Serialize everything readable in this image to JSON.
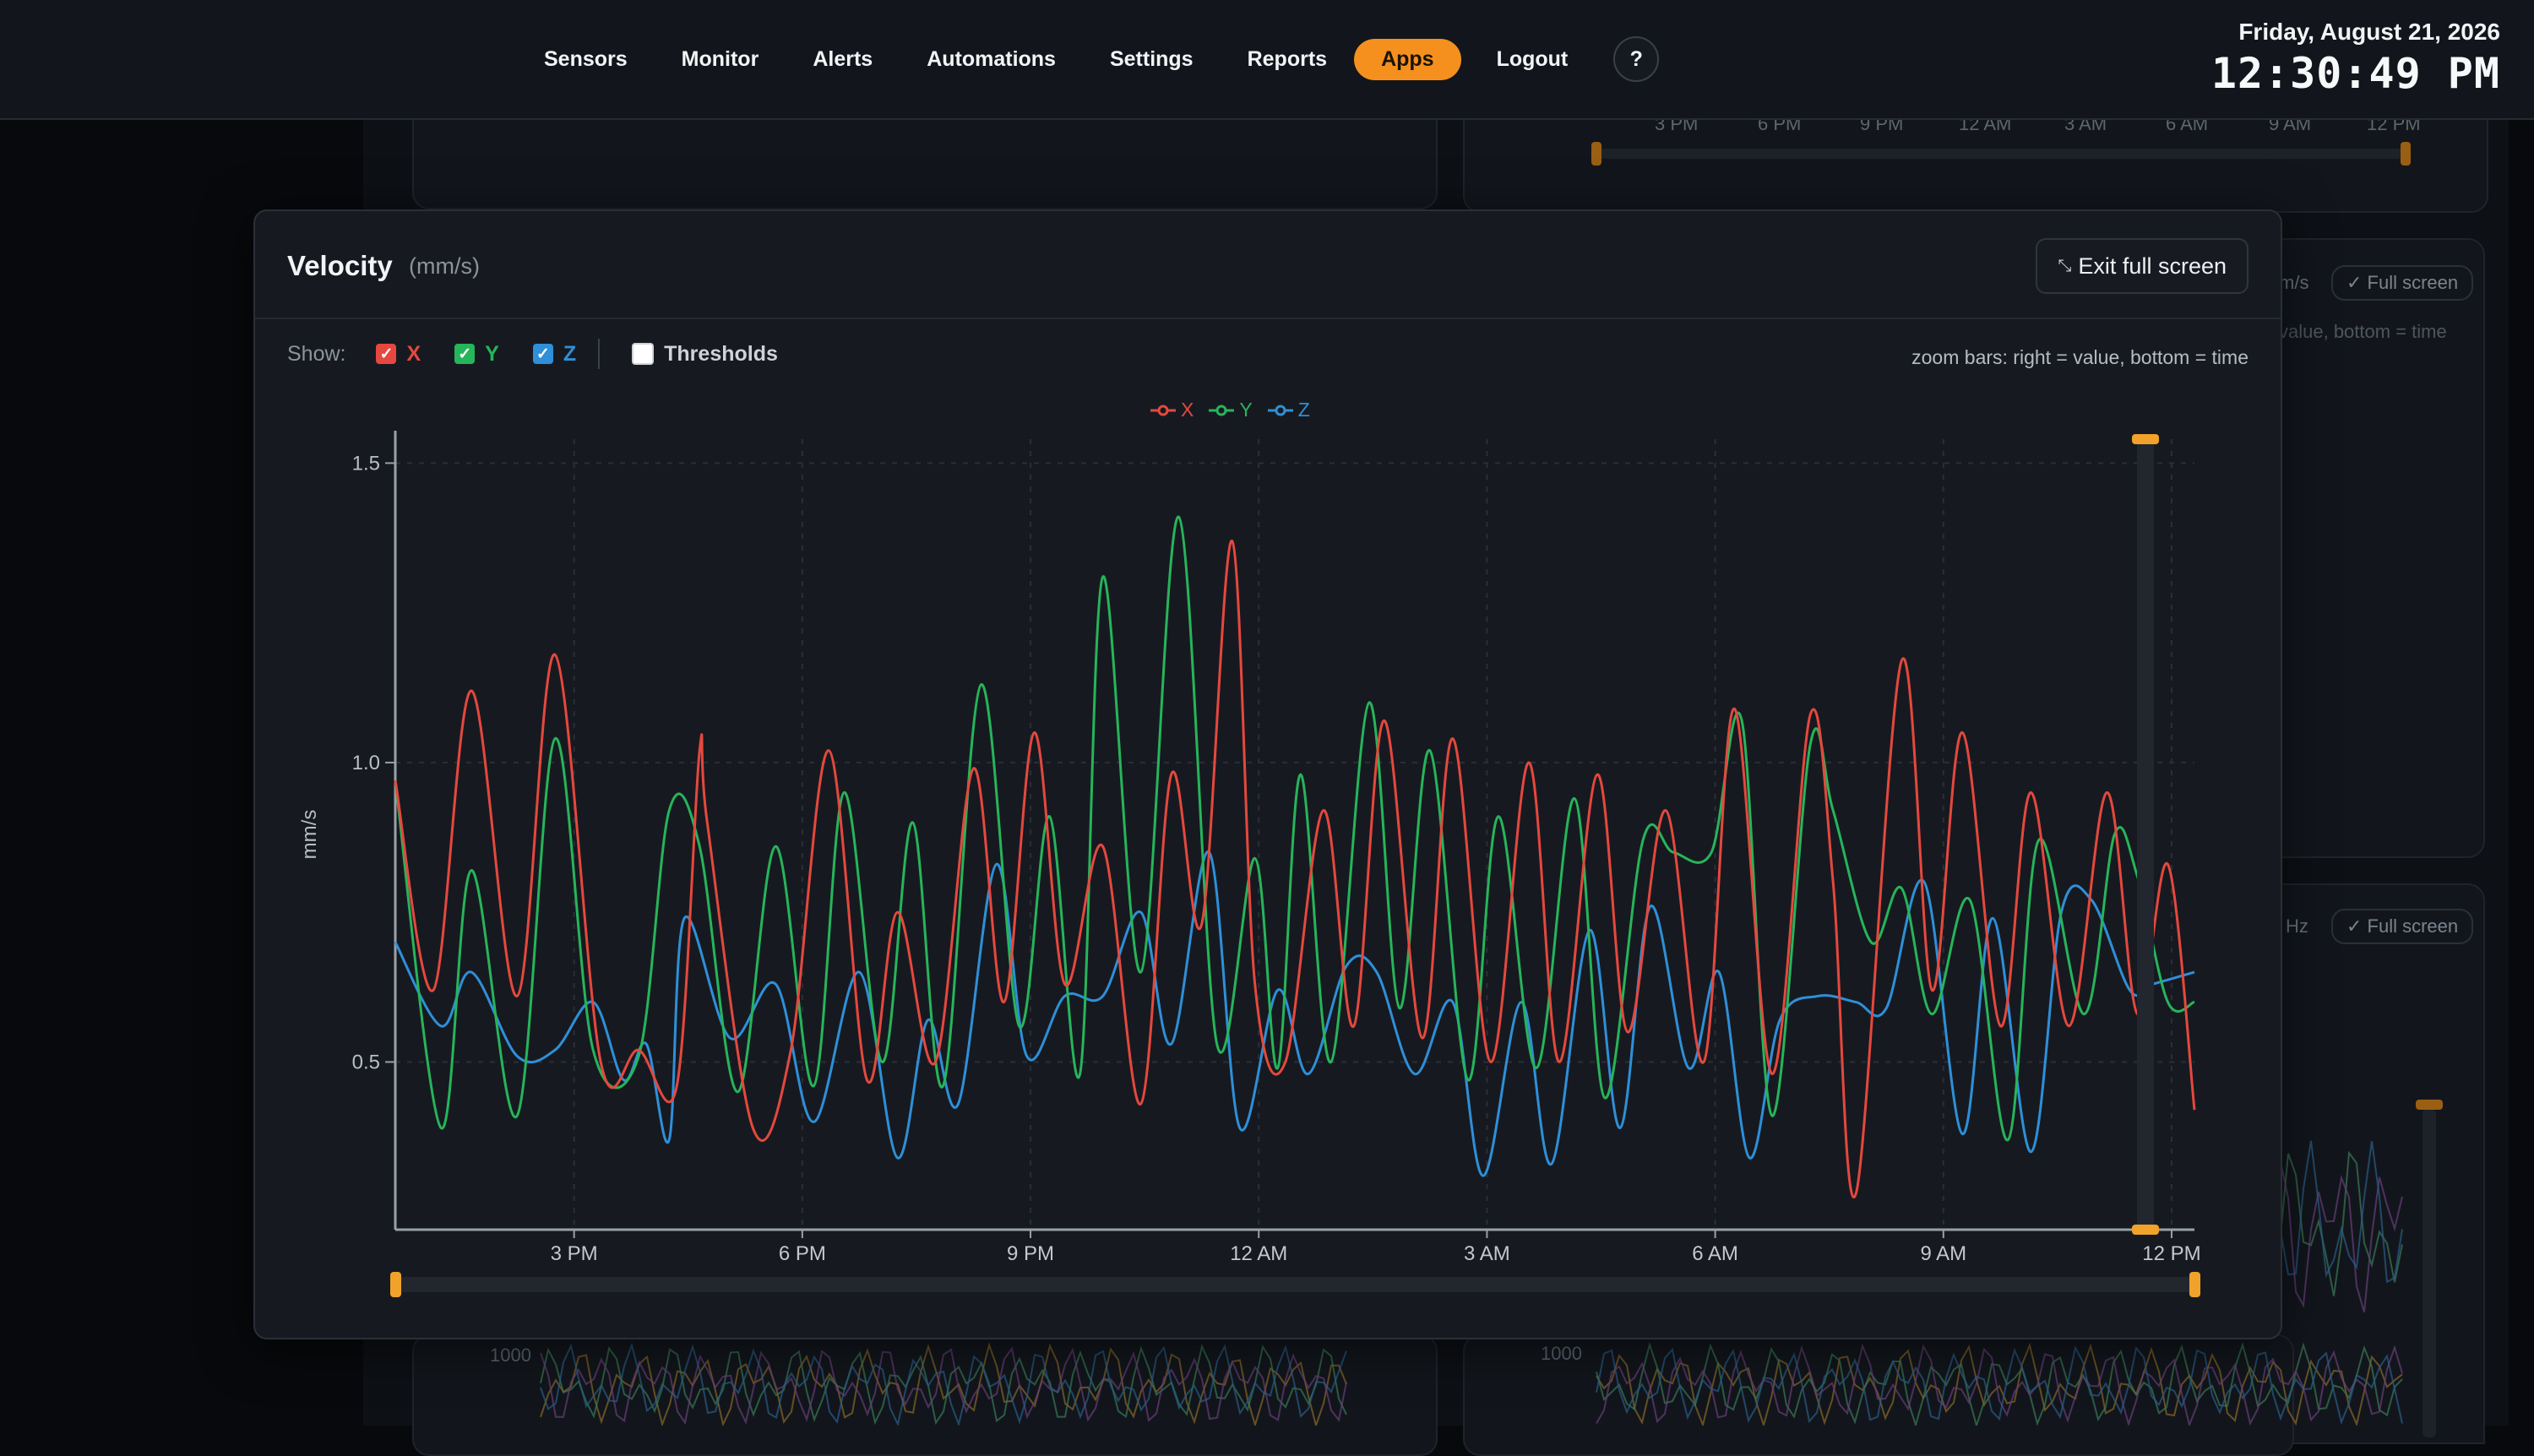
{
  "nav": {
    "items": [
      "Sensors",
      "Monitor",
      "Alerts",
      "Automations",
      "Settings",
      "Reports",
      "Apps",
      "Logout"
    ],
    "active": "Apps",
    "help_label": "?"
  },
  "clock": {
    "date": "Friday, August 21, 2026",
    "time": "12:30:49 PM"
  },
  "background": {
    "top_ticks": [
      "3 PM",
      "6 PM",
      "9 PM",
      "12 AM",
      "3 AM",
      "6 AM",
      "9 AM",
      "12 PM"
    ],
    "card_right_unit": "m/s",
    "card_right_fullscreen": "Full screen",
    "card_right_hint": "value, bottom = time",
    "card_bottom_unit": "Hz",
    "card_bottom_fullscreen": "Full screen",
    "bottom_axis_label_left": "1000",
    "bottom_axis_label_right": "1000"
  },
  "modal": {
    "title": "Velocity",
    "unit": "(mm/s)",
    "exit_label": "Exit full screen",
    "show_label": "Show:",
    "toggles": [
      {
        "label": "X",
        "checked": true,
        "color": "#e5483e"
      },
      {
        "label": "Y",
        "checked": true,
        "color": "#27b45a"
      },
      {
        "label": "Z",
        "checked": true,
        "color": "#2f8fd8"
      },
      {
        "label": "Thresholds",
        "checked": false,
        "color": "#cfd3d8"
      }
    ],
    "zoom_hint": "zoom bars: right = value, bottom = time"
  },
  "chart_data": {
    "type": "line",
    "ylabel": "mm/s",
    "xlabel": "",
    "ylim": [
      0.22,
      1.54
    ],
    "yticks": [
      0.5,
      1.0,
      1.5
    ],
    "xticks": [
      "3 PM",
      "6 PM",
      "9 PM",
      "12 AM",
      "3 AM",
      "6 AM",
      "9 AM",
      "12 PM"
    ],
    "x_tick_positions_hours": [
      2.35,
      5.35,
      8.35,
      11.35,
      14.35,
      17.35,
      20.35,
      23.35
    ],
    "x_range_hours": [
      0,
      23.65
    ],
    "grid": true,
    "legend_position": "top-center",
    "colors": {
      "X": "#e5483e",
      "Y": "#27b45a",
      "Z": "#2f8fd8"
    },
    "series": [
      {
        "name": "X",
        "x": [
          0,
          0.5,
          1.0,
          1.6,
          2.1,
          2.7,
          3.2,
          3.7,
          4.0,
          4.1,
          4.7,
          5.2,
          5.7,
          6.2,
          6.6,
          7.1,
          7.6,
          8.0,
          8.4,
          8.8,
          9.3,
          9.8,
          10.2,
          10.6,
          11.0,
          11.3,
          11.7,
          12.2,
          12.6,
          13.0,
          13.5,
          13.9,
          14.4,
          14.9,
          15.3,
          15.8,
          16.2,
          16.7,
          17.2,
          17.6,
          18.1,
          18.6,
          18.9,
          19.2,
          19.8,
          20.2,
          20.6,
          21.1,
          21.5,
          22.0,
          22.5,
          22.9,
          23.3,
          23.65
        ],
        "y": [
          0.97,
          0.62,
          1.12,
          0.61,
          1.18,
          0.5,
          0.52,
          0.46,
          1.02,
          0.9,
          0.39,
          0.52,
          1.02,
          0.47,
          0.75,
          0.5,
          0.99,
          0.6,
          1.05,
          0.63,
          0.86,
          0.43,
          0.98,
          0.73,
          1.37,
          0.63,
          0.5,
          0.92,
          0.56,
          1.07,
          0.54,
          1.04,
          0.5,
          1.0,
          0.5,
          0.98,
          0.55,
          0.92,
          0.5,
          1.09,
          0.48,
          1.08,
          0.8,
          0.28,
          1.17,
          0.62,
          1.05,
          0.56,
          0.95,
          0.56,
          0.95,
          0.58,
          0.83,
          0.42
        ]
      },
      {
        "name": "Y",
        "x": [
          0,
          0.6,
          1.0,
          1.6,
          2.1,
          2.6,
          3.2,
          3.6,
          4.0,
          4.5,
          5.0,
          5.5,
          5.9,
          6.4,
          6.8,
          7.2,
          7.7,
          8.2,
          8.6,
          9.0,
          9.3,
          9.8,
          10.3,
          10.8,
          11.3,
          11.6,
          11.9,
          12.3,
          12.8,
          13.2,
          13.6,
          14.1,
          14.5,
          15.0,
          15.5,
          15.9,
          16.4,
          16.8,
          17.3,
          17.7,
          18.1,
          18.6,
          18.9,
          19.4,
          19.8,
          20.2,
          20.7,
          21.2,
          21.6,
          22.2,
          22.6,
          22.9,
          23.3,
          23.65
        ],
        "y": [
          0.97,
          0.39,
          0.82,
          0.41,
          1.04,
          0.52,
          0.51,
          0.92,
          0.86,
          0.45,
          0.86,
          0.46,
          0.95,
          0.5,
          0.9,
          0.46,
          1.13,
          0.56,
          0.91,
          0.48,
          1.31,
          0.65,
          1.41,
          0.53,
          0.84,
          0.49,
          0.98,
          0.5,
          1.1,
          0.59,
          1.02,
          0.47,
          0.91,
          0.49,
          0.94,
          0.44,
          0.87,
          0.85,
          0.85,
          1.07,
          0.41,
          1.03,
          0.92,
          0.7,
          0.79,
          0.58,
          0.77,
          0.37,
          0.87,
          0.58,
          0.88,
          0.81,
          0.6,
          0.6
        ]
      },
      {
        "name": "Z",
        "x": [
          0,
          0.6,
          1.0,
          1.6,
          2.1,
          2.6,
          3.0,
          3.3,
          3.6,
          3.8,
          4.4,
          5.0,
          5.5,
          6.1,
          6.6,
          7.0,
          7.4,
          7.9,
          8.3,
          8.8,
          9.3,
          9.8,
          10.2,
          10.7,
          11.1,
          11.6,
          12.0,
          12.5,
          12.9,
          13.4,
          13.9,
          14.3,
          14.8,
          15.2,
          15.7,
          16.1,
          16.5,
          17.0,
          17.4,
          17.8,
          18.2,
          18.7,
          19.2,
          19.6,
          20.1,
          20.6,
          21.0,
          21.5,
          21.9,
          22.3,
          22.8,
          23.1,
          23.65
        ],
        "y": [
          0.7,
          0.56,
          0.65,
          0.51,
          0.52,
          0.6,
          0.47,
          0.53,
          0.37,
          0.74,
          0.54,
          0.63,
          0.4,
          0.65,
          0.34,
          0.57,
          0.43,
          0.83,
          0.51,
          0.61,
          0.61,
          0.75,
          0.53,
          0.85,
          0.39,
          0.62,
          0.48,
          0.66,
          0.65,
          0.48,
          0.6,
          0.31,
          0.6,
          0.33,
          0.72,
          0.39,
          0.76,
          0.49,
          0.65,
          0.34,
          0.57,
          0.61,
          0.6,
          0.59,
          0.8,
          0.38,
          0.74,
          0.35,
          0.75,
          0.77,
          0.62,
          0.63,
          0.65
        ]
      }
    ]
  }
}
